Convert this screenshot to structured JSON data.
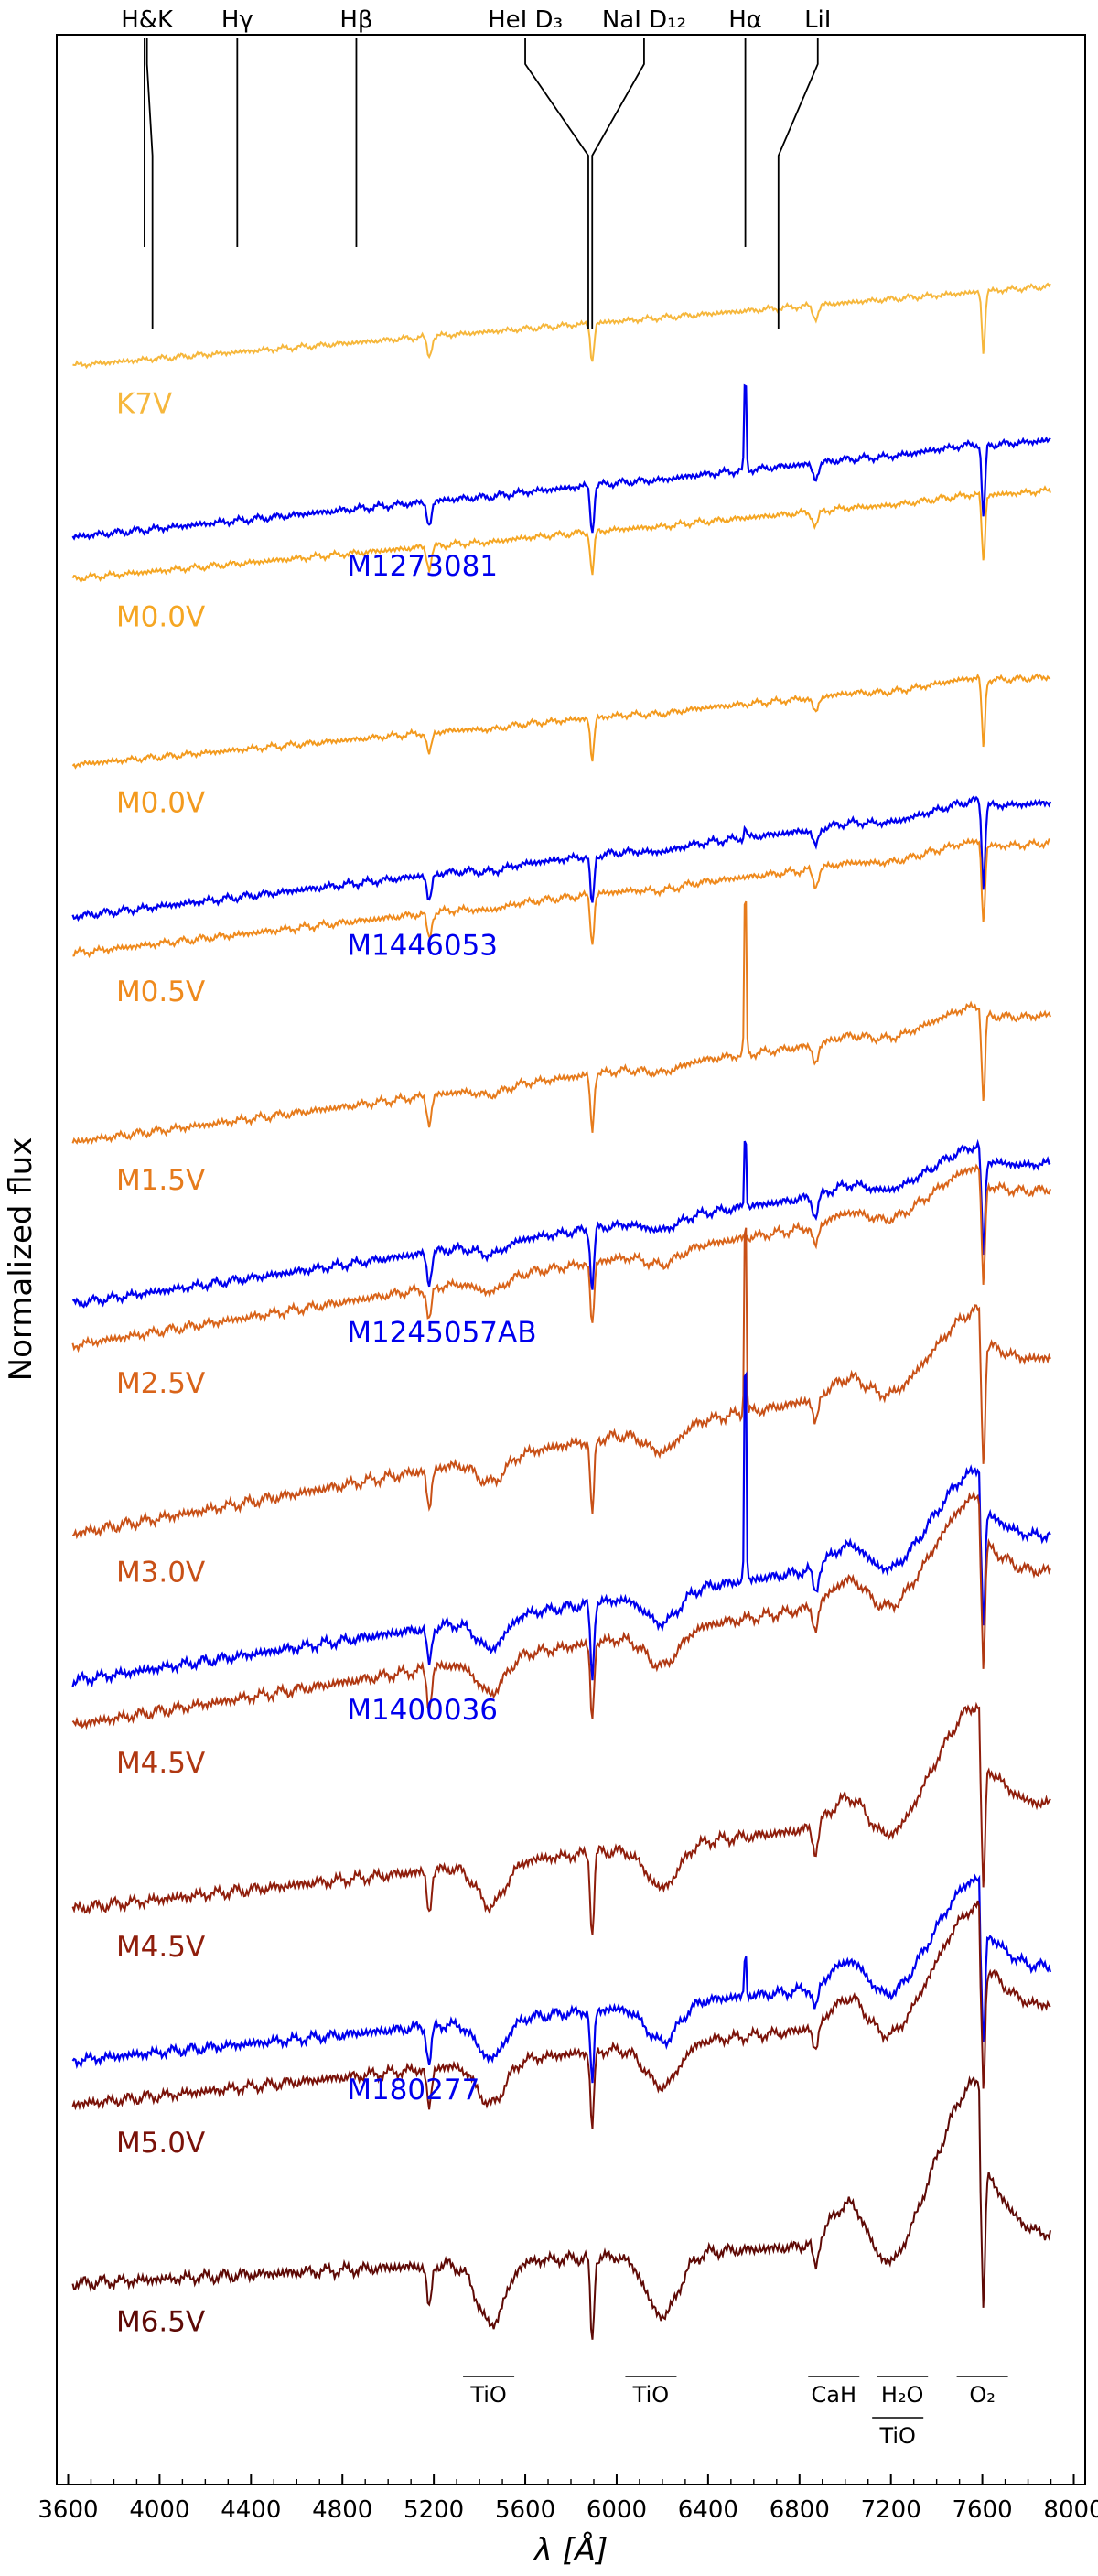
{
  "chart_data": {
    "type": "line",
    "title": "",
    "xlabel": "λ [Å]",
    "ylabel": "Normalized flux",
    "xlim": [
      3550,
      8050
    ],
    "ylim": [
      0,
      100
    ],
    "xticks": [
      3600,
      4000,
      4400,
      4800,
      5200,
      5600,
      6000,
      6400,
      6800,
      7200,
      7600,
      8000
    ],
    "line_markers": [
      {
        "label": "H&K",
        "x": [
          3934,
          3969
        ],
        "text_x": 3945
      },
      {
        "label": "Hγ",
        "x": [
          4340
        ],
        "text_x": 4340
      },
      {
        "label": "Hβ",
        "x": [
          4861
        ],
        "text_x": 4861
      },
      {
        "label": "HeI D₃",
        "x": [
          5876
        ],
        "text_x": 5600
      },
      {
        "label": "NaI D₁₂",
        "x": [
          5893
        ],
        "text_x": 6120
      },
      {
        "label": "Hα",
        "x": [
          6563
        ],
        "text_x": 6563
      },
      {
        "label": "LiI",
        "x": [
          6708
        ],
        "text_x": 6880
      }
    ],
    "band_labels": [
      {
        "label": "TiO",
        "x": 5440
      },
      {
        "label": "TiO",
        "x": 6150
      },
      {
        "label": "CaH",
        "x": 6950
      },
      {
        "label": "H₂O",
        "x": 7250
      },
      {
        "label": "TiO",
        "x": 7230
      },
      {
        "label": "O₂",
        "x": 7600
      }
    ],
    "series": [
      {
        "name": "K7V",
        "kind": "template",
        "color": "#f6b73c",
        "offset": 86.5,
        "amp": 4.5,
        "slope": 0.72,
        "late": 0.0,
        "emission": 0.0
      },
      {
        "name": "M1273081",
        "kind": "target",
        "color": "#0000ee",
        "offset": 79.5,
        "amp": 5.5,
        "slope": 0.72,
        "late": 0.05,
        "emission": 4.5
      },
      {
        "name": "M0.0V",
        "kind": "template",
        "color": "#f5a623",
        "offset": 77.8,
        "amp": 5.0,
        "slope": 0.72,
        "late": 0.05,
        "emission": 0.0
      },
      {
        "name": "M0.0V",
        "kind": "template",
        "color": "#f39a1e",
        "offset": 70.2,
        "amp": 5.0,
        "slope": 0.72,
        "late": 0.1,
        "emission": 0.0
      },
      {
        "name": "M1446053",
        "kind": "target",
        "color": "#0000ee",
        "offset": 64.0,
        "amp": 6.0,
        "slope": 0.78,
        "late": 0.15,
        "emission": 0.5
      },
      {
        "name": "M0.5V",
        "kind": "template",
        "color": "#ef8a1d",
        "offset": 62.5,
        "amp": 5.8,
        "slope": 0.78,
        "late": 0.15,
        "emission": 0.0
      },
      {
        "name": "M1.5V",
        "kind": "template",
        "color": "#e67b1c",
        "offset": 54.8,
        "amp": 6.5,
        "slope": 0.8,
        "late": 0.25,
        "emission": 8.0
      },
      {
        "name": "M1245057AB",
        "kind": "target",
        "color": "#0000ee",
        "offset": 48.2,
        "amp": 7.0,
        "slope": 0.82,
        "late": 0.35,
        "emission": 3.5
      },
      {
        "name": "M2.5V",
        "kind": "template",
        "color": "#d9641a",
        "offset": 46.5,
        "amp": 7.5,
        "slope": 0.85,
        "late": 0.4,
        "emission": 0.0
      },
      {
        "name": "M3.0V",
        "kind": "template",
        "color": "#c85017",
        "offset": 38.8,
        "amp": 9.0,
        "slope": 0.8,
        "late": 0.6,
        "emission": 10.0
      },
      {
        "name": "M1400036",
        "kind": "target",
        "color": "#0000ee",
        "offset": 32.8,
        "amp": 8.5,
        "slope": 0.7,
        "late": 0.8,
        "emission": 11.0
      },
      {
        "name": "M4.5V",
        "kind": "template",
        "color": "#b03812",
        "offset": 31.0,
        "amp": 9.0,
        "slope": 0.7,
        "late": 0.85,
        "emission": 0.0
      },
      {
        "name": "M4.5V",
        "kind": "template",
        "color": "#8f1e0c",
        "offset": 23.5,
        "amp": 9.5,
        "slope": 0.45,
        "late": 1.0,
        "emission": 0.0
      },
      {
        "name": "M180277",
        "kind": "target",
        "color": "#0000ee",
        "offset": 17.3,
        "amp": 8.5,
        "slope": 0.45,
        "late": 1.0,
        "emission": 2.0
      },
      {
        "name": "M5.0V",
        "kind": "template",
        "color": "#7a1209",
        "offset": 15.5,
        "amp": 9.0,
        "slope": 0.45,
        "late": 1.05,
        "emission": 0.0
      },
      {
        "name": "M6.5V",
        "kind": "template",
        "color": "#5e0a06",
        "offset": 8.2,
        "amp": 10.0,
        "slope": 0.2,
        "late": 1.4,
        "emission": 0.0
      }
    ]
  }
}
